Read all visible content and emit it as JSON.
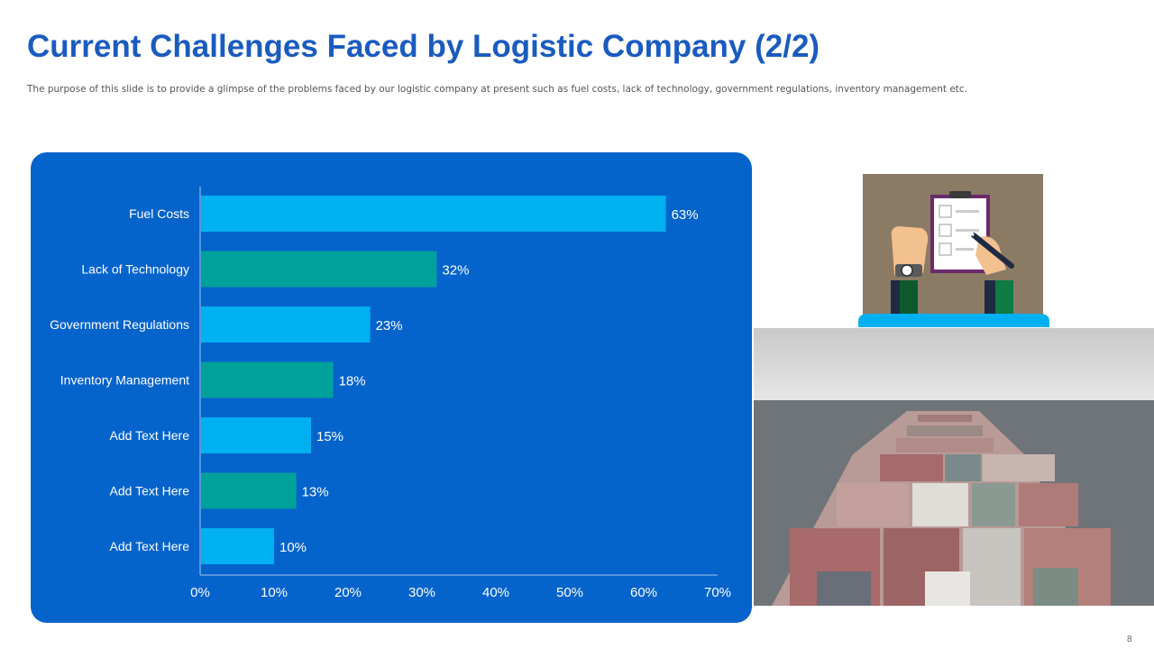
{
  "slide": {
    "title": "Current Challenges Faced by Logistic Company (2/2)",
    "subtitle": "The purpose of this slide is to provide a glimpse of the problems faced by our logistic company at present such as fuel costs, lack of technology, government  regulations, inventory management  etc.",
    "page_number": "8"
  },
  "colors": {
    "title": "#1a5bbf",
    "panel": "#0563cc",
    "bar_a": "#00b0f0",
    "bar_b": "#00a19a"
  },
  "chart_data": {
    "type": "bar",
    "orientation": "horizontal",
    "categories": [
      "Fuel Costs",
      "Lack of Technology",
      "Government Regulations",
      "Inventory Management",
      "Add Text Here",
      "Add Text Here",
      "Add Text Here"
    ],
    "values": [
      63,
      32,
      23,
      18,
      15,
      13,
      10
    ],
    "value_labels": [
      "63%",
      "32%",
      "23%",
      "18%",
      "15%",
      "13%",
      "10%"
    ],
    "xlim": [
      0,
      70
    ],
    "xticks": [
      "0%",
      "10%",
      "20%",
      "30%",
      "40%",
      "50%",
      "60%",
      "70%"
    ],
    "title": "",
    "xlabel": "",
    "ylabel": "",
    "grid": false,
    "legend": "none"
  }
}
